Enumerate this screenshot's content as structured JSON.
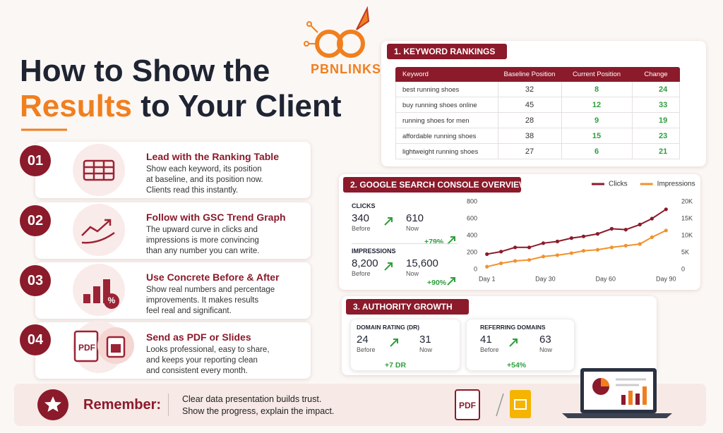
{
  "logo": "PBNLINKS",
  "title": {
    "line1": "How to Show the",
    "highlight": "Results",
    "rest": "to Your Client"
  },
  "steps": [
    {
      "number": "01",
      "title": "Lead with the Ranking Table",
      "lines": [
        "Show each keyword, its position",
        "at baseline, and its position now.",
        "Clients read this instantly."
      ]
    },
    {
      "number": "02",
      "title": "Follow with GSC Trend Graph",
      "lines": [
        "The upward curve in clicks and",
        "impressions is more convincing",
        "than any number you can write."
      ]
    },
    {
      "number": "03",
      "title": "Use Concrete Before & After",
      "lines": [
        "Show real numbers and percentage",
        "improvements. It makes results",
        "feel real and significant."
      ],
      "icon_text": "%"
    },
    {
      "number": "04",
      "title": "Send as PDF or Slides",
      "lines": [
        "Looks professional, easy to share,",
        "and keeps your reporting clean",
        "and consistent every month."
      ],
      "icon_text": "PDF"
    }
  ],
  "rankings": {
    "title": "1. KEYWORD RANKINGS",
    "columns": [
      "Keyword",
      "Baseline Position",
      "Current Position",
      "Change"
    ],
    "rows": [
      [
        "best running shoes",
        32,
        8,
        24
      ],
      [
        "buy running shoes online",
        45,
        12,
        33
      ],
      [
        "running shoes for men",
        28,
        9,
        19
      ],
      [
        "affordable running shoes",
        38,
        15,
        23
      ],
      [
        "lightweight running shoes",
        27,
        6,
        21
      ]
    ]
  },
  "gsc": {
    "title": "2. GOOGLE SEARCH CONSOLE OVERVIEW",
    "metrics": [
      {
        "label": "CLICKS",
        "before": "340",
        "before_label": "Before",
        "now": "610",
        "now_label": "Now",
        "change": "+79%"
      },
      {
        "label": "IMPRESSIONS",
        "before": "8,200",
        "before_label": "Before",
        "now": "15,600",
        "now_label": "Now",
        "change": "+90%"
      }
    ]
  },
  "chart_data": {
    "type": "line",
    "x": [
      1,
      8,
      15,
      22,
      29,
      36,
      43,
      49,
      56,
      63,
      70,
      77,
      83,
      90
    ],
    "series": [
      {
        "name": "Clicks",
        "color": "#8b1a2b",
        "values": [
          180,
          210,
          260,
          260,
          310,
          330,
          370,
          390,
          420,
          480,
          470,
          530,
          600,
          710
        ]
      },
      {
        "name": "Impressions",
        "color": "#f0922e",
        "axis": "y2",
        "values": [
          800,
          1800,
          2500,
          2800,
          3800,
          4200,
          4800,
          5500,
          5800,
          6500,
          7000,
          7500,
          9500,
          11500
        ]
      }
    ],
    "xlim": [
      -1,
      92
    ],
    "xticks": [
      {
        "value": 1,
        "label": "Day 1"
      },
      {
        "value": 30,
        "label": "Day 30"
      },
      {
        "value": 60,
        "label": "Day 60"
      },
      {
        "value": 90,
        "label": "Day 90"
      }
    ],
    "ylim": [
      0,
      800
    ],
    "yticks": [
      0,
      200,
      400,
      600,
      800
    ],
    "y2lim": [
      0,
      20000
    ],
    "y2ticks": [
      0,
      {
        "value": 5000,
        "label": "5K"
      },
      {
        "value": 10000,
        "label": "10K"
      },
      {
        "value": 15000,
        "label": "15K"
      },
      {
        "value": 20000,
        "label": "20K"
      }
    ],
    "legend": "top-right",
    "grid": false
  },
  "authority": {
    "title": "3. AUTHORITY GROWTH",
    "metrics": [
      {
        "label": "DOMAIN RATING (DR)",
        "before": "24",
        "before_label": "Before",
        "now": "31",
        "now_label": "Now",
        "change": "+7 DR"
      },
      {
        "label": "REFERRING DOMAINS",
        "before": "41",
        "before_label": "Before",
        "now": "63",
        "now_label": "Now",
        "change": "+54%"
      }
    ]
  },
  "remember": {
    "label": "Remember:",
    "lines": [
      "Clear data presentation builds trust.",
      "Show the progress, explain the impact."
    ],
    "icon_text": "PDF"
  }
}
